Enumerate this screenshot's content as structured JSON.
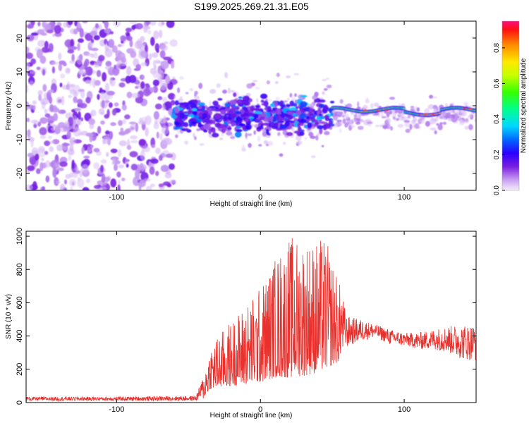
{
  "title": "S199.2025.269.21.31.E05",
  "chart_data": [
    {
      "type": "heatmap",
      "name": "spectrogram",
      "xlabel": "Height of straight line (km)",
      "ylabel": "Frequency (Hz)",
      "xlim": [
        -163,
        150
      ],
      "ylim": [
        -25,
        25
      ],
      "xticks": [
        -100,
        0,
        100
      ],
      "yticks": [
        -20,
        -10,
        0,
        10,
        20
      ],
      "colorbar": {
        "label": "Normalized spectral amplitude",
        "range": [
          0,
          0.95
        ],
        "ticks": [
          0.0,
          0.2,
          0.4,
          0.6,
          0.8
        ],
        "tick_labels": [
          "0.0",
          "0.2",
          "0.4",
          "0.6",
          "0.8"
        ]
      },
      "regions": [
        {
          "x": [
            -163,
            -60
          ],
          "freq": [
            -25,
            25
          ],
          "amplitude": [
            0.02,
            0.12
          ],
          "description": "noise"
        },
        {
          "x": [
            -60,
            50
          ],
          "freq": [
            -13,
            7
          ],
          "amplitude": [
            0.1,
            0.35
          ]
        },
        {
          "x": [
            50,
            150
          ],
          "freq": [
            -2,
            1
          ],
          "amplitude": [
            0.4,
            0.95
          ]
        }
      ]
    },
    {
      "type": "line",
      "name": "snr",
      "xlabel": "Height of straight line (km)",
      "ylabel": "SNR (10 * v/v)",
      "xlim": [
        -163,
        150
      ],
      "ylim": [
        0,
        1030
      ],
      "xticks": [
        -100,
        0,
        100
      ],
      "yticks": [
        0,
        200,
        400,
        600,
        800,
        1000
      ],
      "color": "#e8302c",
      "envelope": {
        "x": [
          -163,
          -100,
          -45,
          -40,
          -35,
          -20,
          0,
          10,
          20,
          30,
          40,
          45,
          55,
          60,
          70,
          80,
          90,
          100,
          110,
          120,
          130,
          140,
          150
        ],
        "min": [
          10,
          10,
          10,
          20,
          80,
          100,
          120,
          150,
          150,
          160,
          180,
          200,
          250,
          330,
          370,
          390,
          350,
          340,
          320,
          320,
          300,
          260,
          250
        ],
        "max": [
          35,
          35,
          40,
          150,
          350,
          500,
          700,
          880,
          1000,
          1000,
          980,
          1000,
          720,
          520,
          500,
          470,
          440,
          420,
          420,
          440,
          460,
          470,
          470
        ]
      }
    }
  ]
}
